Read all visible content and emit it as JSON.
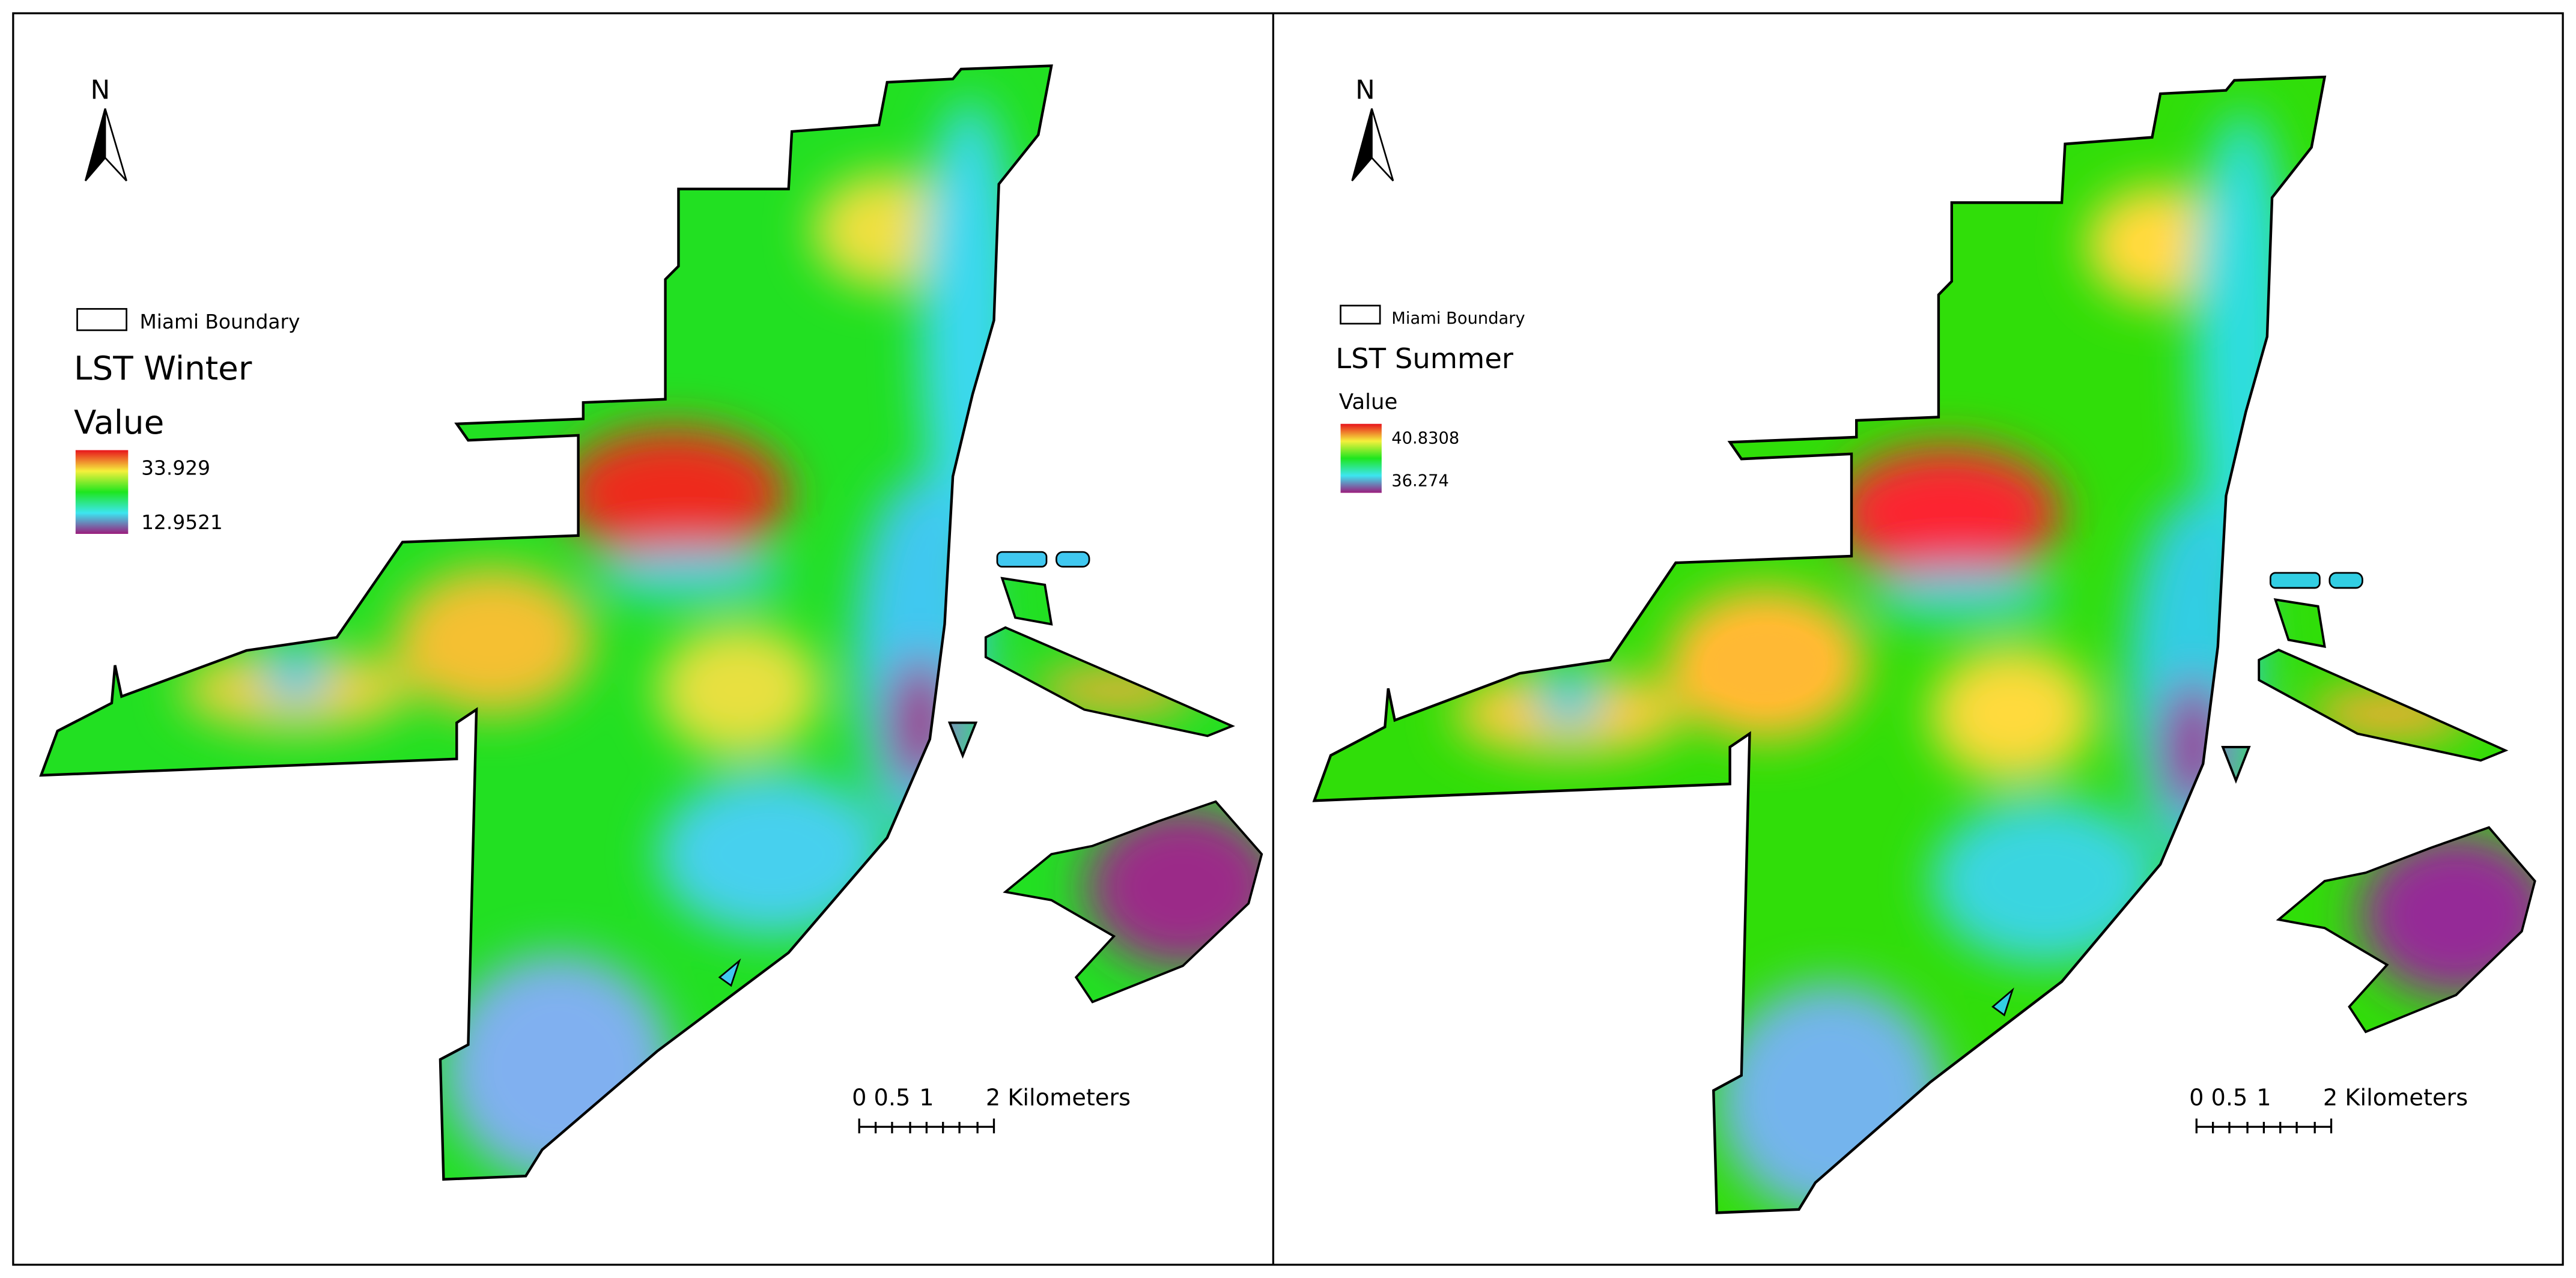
{
  "panels": [
    {
      "north": "N",
      "legend": {
        "boundary": "Miami Boundary",
        "title": "LST Winter",
        "value_heading": "Value",
        "high": "33.929",
        "low": "12.9521"
      },
      "scale_bar": {
        "labels": [
          "0",
          "0.5",
          "1",
          "2 Kilometers"
        ]
      }
    },
    {
      "north": "N",
      "legend": {
        "boundary": "Miami Boundary",
        "title": "LST Summer",
        "value_heading": "Value",
        "high": "40.8308",
        "low": "36.274"
      },
      "scale_bar": {
        "labels": [
          "0",
          "0.5",
          "1",
          "2 Kilometers"
        ]
      }
    }
  ]
}
